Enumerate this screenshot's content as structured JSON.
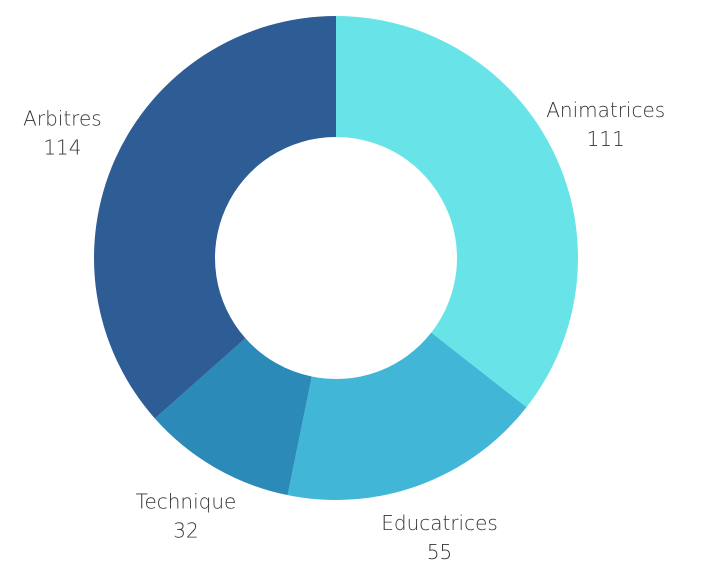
{
  "chart_data": {
    "type": "donut",
    "categories": [
      "Animatrices",
      "Educatrices",
      "Technique",
      "Arbitres"
    ],
    "values": [
      111,
      55,
      32,
      114
    ],
    "colors": [
      "#68e4e8",
      "#41b6d6",
      "#2c8ab8",
      "#2e5d96"
    ]
  }
}
